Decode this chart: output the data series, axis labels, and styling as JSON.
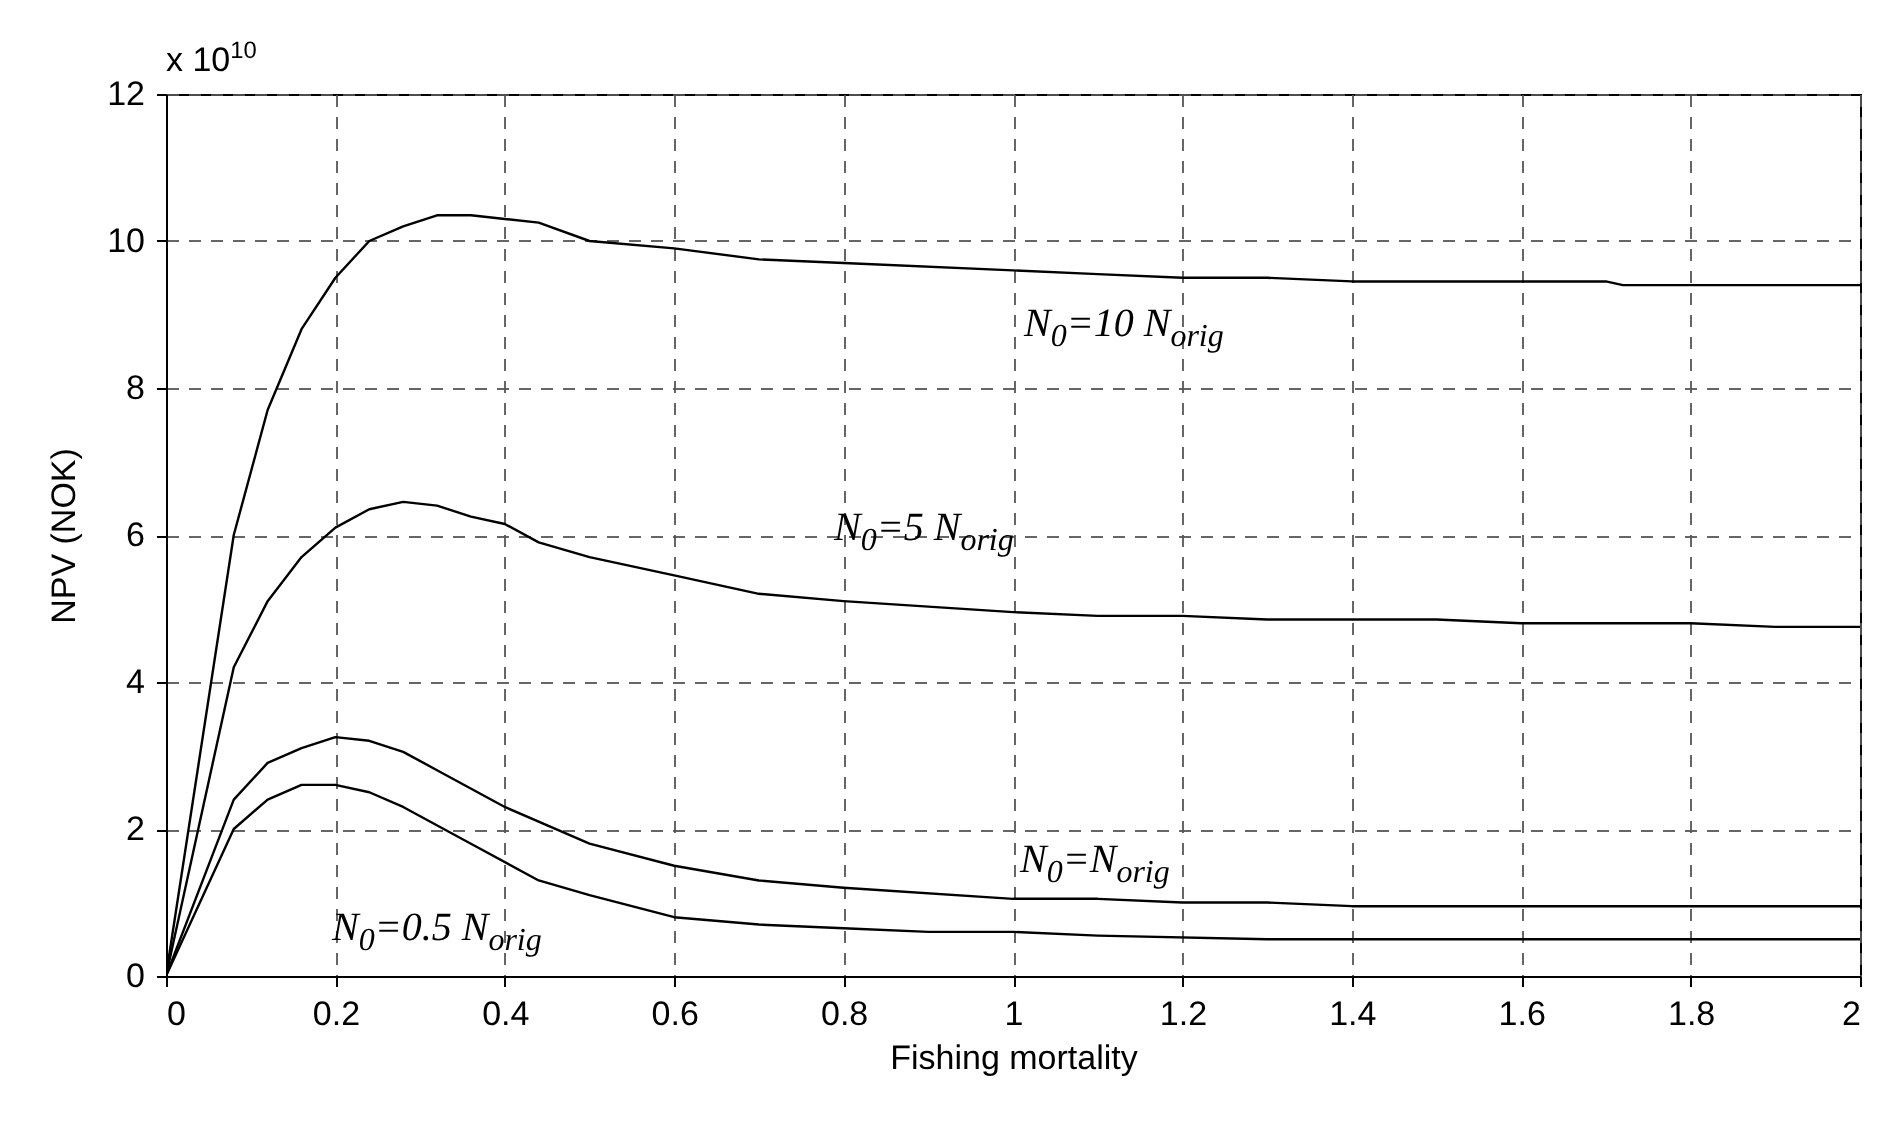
{
  "chart_data": {
    "type": "line",
    "xlabel": "Fishing mortality",
    "ylabel": "NPV (NOK)",
    "xlim": [
      0,
      2
    ],
    "xticks": [
      0,
      0.2,
      0.4,
      0.6,
      0.8,
      1,
      1.2,
      1.4,
      1.6,
      1.8,
      2
    ],
    "ylim": [
      0,
      12
    ],
    "yticks": [
      0,
      2,
      4,
      6,
      8,
      10,
      12
    ],
    "grid": true,
    "line_style": "solid",
    "series": [
      {
        "name": "N$_{0}$=10 N$_{orig}$",
        "color": "#000000",
        "x": [
          0,
          0.08,
          0.12,
          0.16,
          0.2,
          0.24,
          0.28,
          0.32,
          0.36,
          0.4,
          0.44,
          0.5,
          0.6,
          0.7,
          0.8,
          1,
          1.1,
          1.2,
          1.3,
          1.4,
          1.7,
          1.72,
          2
        ],
        "values": [
          0,
          6.0,
          7.7,
          8.8,
          9.5,
          10.0,
          10.2,
          10.35,
          10.35,
          10.3,
          10.25,
          10.0,
          9.9,
          9.75,
          9.7,
          9.6,
          9.55,
          9.5,
          9.5,
          9.45,
          9.45,
          9.4,
          9.4
        ]
      },
      {
        "name": "N$_{0}$=5 N$_{orig}$",
        "color": "#000000",
        "x": [
          0,
          0.08,
          0.12,
          0.16,
          0.2,
          0.24,
          0.28,
          0.32,
          0.36,
          0.4,
          0.44,
          0.5,
          0.6,
          0.7,
          0.8,
          1,
          1.1,
          1.2,
          1.3,
          1.5,
          1.6,
          1.8,
          1.9,
          2
        ],
        "values": [
          0,
          4.2,
          5.1,
          5.7,
          6.1,
          6.35,
          6.45,
          6.4,
          6.25,
          6.15,
          5.9,
          5.7,
          5.45,
          5.2,
          5.1,
          4.95,
          4.9,
          4.9,
          4.85,
          4.85,
          4.8,
          4.8,
          4.75,
          4.75
        ]
      },
      {
        "name": "N$_{0}$=N$_{orig}$",
        "color": "#000000",
        "x": [
          0,
          0.08,
          0.12,
          0.16,
          0.2,
          0.24,
          0.28,
          0.32,
          0.4,
          0.5,
          0.6,
          0.7,
          0.8,
          1,
          1.1,
          1.2,
          1.3,
          1.4,
          1.6,
          1.8,
          2
        ],
        "values": [
          0,
          2.4,
          2.9,
          3.1,
          3.25,
          3.2,
          3.05,
          2.8,
          2.3,
          1.8,
          1.5,
          1.3,
          1.2,
          1.05,
          1.05,
          1.0,
          1.0,
          0.95,
          0.95,
          0.95,
          0.95
        ]
      },
      {
        "name": "N$_{0}$=0.5 N$_{orig}$",
        "color": "#000000",
        "x": [
          0,
          0.08,
          0.12,
          0.16,
          0.2,
          0.24,
          0.28,
          0.36,
          0.44,
          0.5,
          0.6,
          0.7,
          0.8,
          0.9,
          1,
          1.1,
          1.3,
          2
        ],
        "values": [
          0,
          2.0,
          2.4,
          2.6,
          2.6,
          2.5,
          2.3,
          1.8,
          1.3,
          1.1,
          0.8,
          0.7,
          0.65,
          0.6,
          0.6,
          0.55,
          0.5,
          0.5
        ]
      }
    ],
    "annotations": [
      "x 10$^{10}$"
    ]
  }
}
